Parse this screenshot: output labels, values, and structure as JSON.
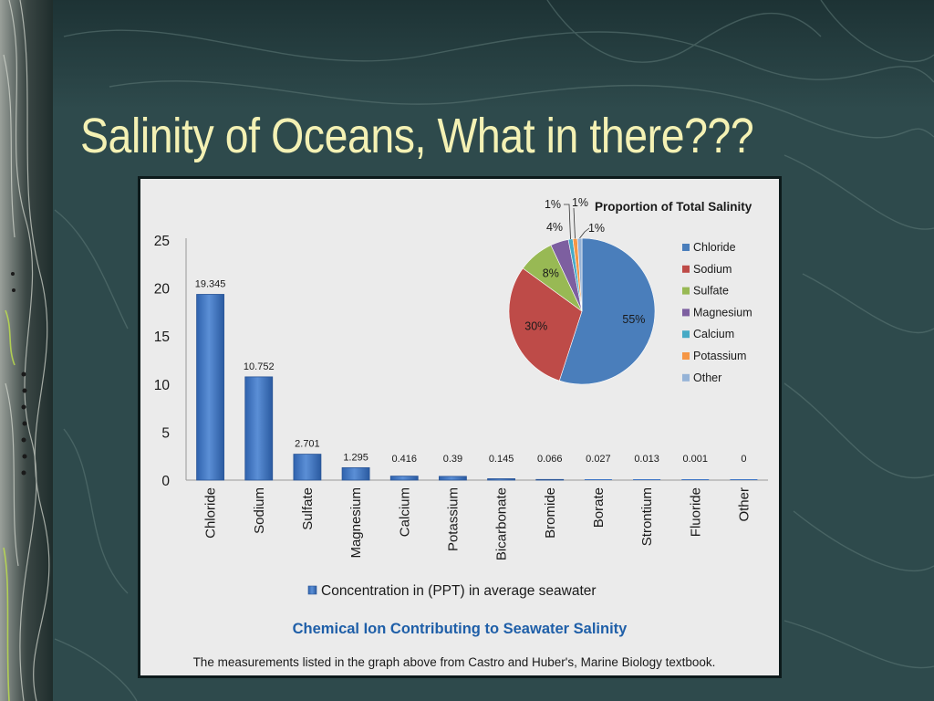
{
  "slide": {
    "title": "Salinity of Oceans, What in there???",
    "colors": {
      "background": "#2e4a4c",
      "title": "#f4f1b4"
    }
  },
  "chart_data": [
    {
      "type": "bar",
      "categories": [
        "Chloride",
        "Sodium",
        "Sulfate",
        "Magnesium",
        "Calcium",
        "Potassium",
        "Bicarbonate",
        "Bromide",
        "Borate",
        "Strontium",
        "Fluoride",
        "Other"
      ],
      "series": [
        {
          "name": "Concentration in (PPT) in average seawater",
          "values": [
            19.345,
            10.752,
            2.701,
            1.295,
            0.416,
            0.39,
            0.145,
            0.066,
            0.027,
            0.013,
            0.001,
            0
          ],
          "labels": [
            "19.345",
            "10.752",
            "2.701",
            "1.295",
            "0.416",
            "0.39",
            "0.145",
            "0.066",
            "0.027",
            "0.013",
            "0.001",
            "0"
          ],
          "color": "#3c74c4"
        }
      ],
      "title": "Chemical Ion Contributing to Seawater Salinity",
      "xlabel": "",
      "ylabel": "",
      "ylim": [
        0,
        25
      ],
      "yticks": [
        0,
        5,
        10,
        15,
        20,
        25
      ],
      "grid": false,
      "legend": "bottom",
      "title_color": "#1f5fa8",
      "footnote": "The measurements listed in the  graph above from Castro and Huber's, Marine Biology textbook."
    },
    {
      "type": "pie",
      "title": "Proportion of Total Salinity",
      "legend": "right",
      "slices": [
        {
          "name": "Chloride",
          "value": 55,
          "label": "55%",
          "color": "#4a7ebb"
        },
        {
          "name": "Sodium",
          "value": 30,
          "label": "30%",
          "color": "#be4b48"
        },
        {
          "name": "Sulfate",
          "value": 8,
          "label": "8%",
          "color": "#98b954"
        },
        {
          "name": "Magnesium",
          "value": 4,
          "label": "4%",
          "color": "#7d5fa0"
        },
        {
          "name": "Calcium",
          "value": 1,
          "label": "1%",
          "color": "#46aac5"
        },
        {
          "name": "Potassium",
          "value": 1,
          "label": "1%",
          "color": "#f59645"
        },
        {
          "name": "Other",
          "value": 1,
          "label": "1%",
          "color": "#95b3d7"
        }
      ]
    }
  ]
}
